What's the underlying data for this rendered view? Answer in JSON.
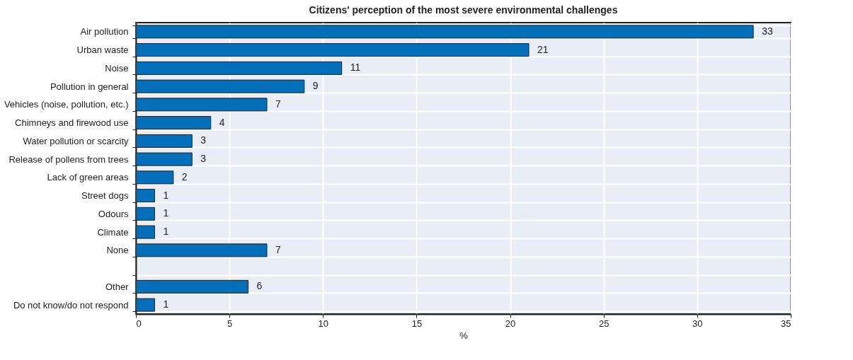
{
  "chart_data": {
    "type": "bar",
    "orientation": "horizontal",
    "title": "Citizens' perception of the most severe environmental challenges",
    "xlabel": "%",
    "categories": [
      "Air pollution",
      "Urban waste",
      "Noise",
      "Pollution in general",
      "Vehicles (noise, pollution, etc.)",
      "Chimneys and firewood use",
      "Water pollution or scarcity",
      "Release of pollens from trees",
      "Lack of green areas",
      "Street dogs",
      "Odours",
      "Climate",
      "None",
      null,
      "Other",
      "Do not know/do not respond"
    ],
    "values": [
      33,
      21,
      11,
      9,
      7,
      4,
      3,
      3,
      2,
      1,
      1,
      1,
      7,
      null,
      6,
      1
    ],
    "color": "#0570b9",
    "xlim": [
      0,
      35
    ],
    "xticks": [
      0,
      5,
      10,
      15,
      20,
      25,
      30,
      35
    ],
    "grid": true,
    "data_labels": true
  }
}
